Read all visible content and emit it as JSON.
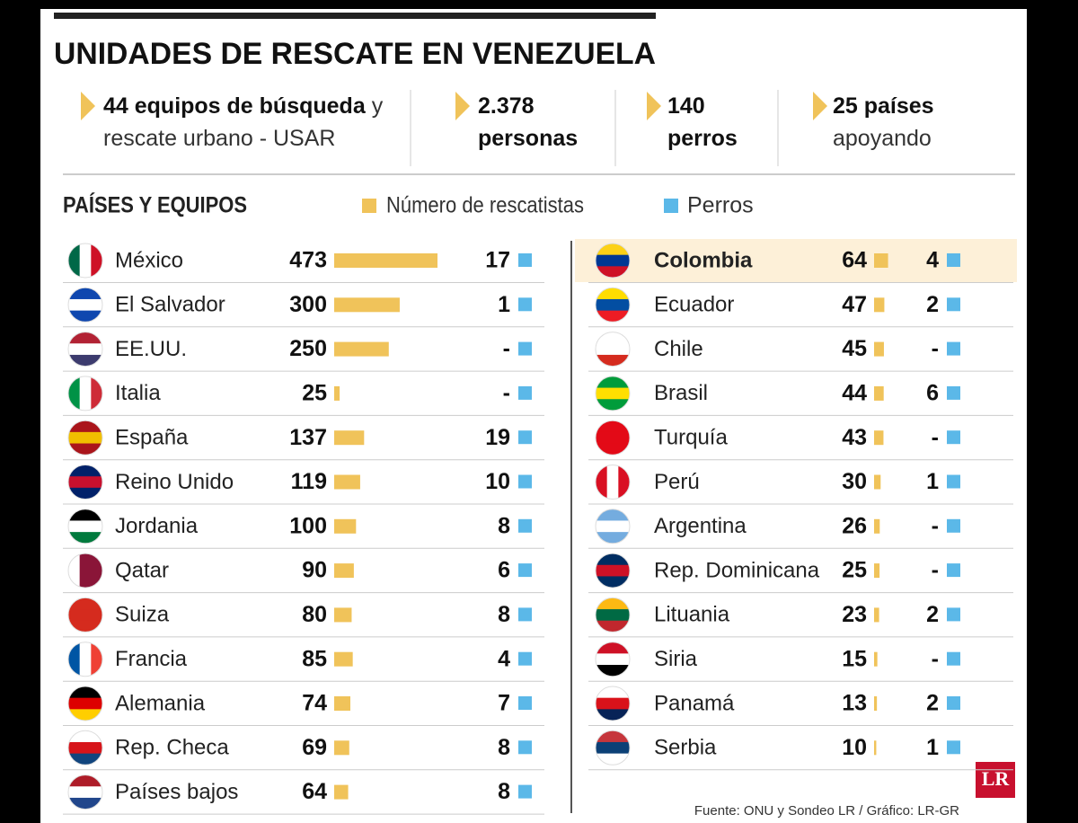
{
  "header": {
    "title": "UNIDADES DE RESCATE EN VENEZUELA",
    "stats": [
      {
        "bold": "44 equipos de búsqueda",
        "text": "y rescate urbano - USAR"
      },
      {
        "bold": "2.378 personas"
      },
      {
        "bold": "140 perros"
      },
      {
        "bold": "25 países",
        "text": "apoyando"
      }
    ]
  },
  "chart_data": {
    "type": "bar",
    "title": "PAÍSES Y EQUIPOS",
    "categories": [
      "México",
      "El Salvador",
      "EE.UU.",
      "Italia",
      "España",
      "Reino Unido",
      "Jordania",
      "Qatar",
      "Suiza",
      "Francia",
      "Alemania",
      "Rep. Checa",
      "Países bajos",
      "Colombia",
      "Ecuador",
      "Chile",
      "Brasil",
      "Turquía",
      "Perú",
      "Argentina",
      "Rep. Dominicana",
      "Lituania",
      "Siria",
      "Panamá",
      "Serbia"
    ],
    "series": [
      {
        "name": "Número de rescatistas",
        "color": "#f0c35a",
        "values": [
          473,
          300,
          250,
          25,
          137,
          119,
          100,
          90,
          80,
          85,
          74,
          69,
          64,
          64,
          47,
          45,
          44,
          43,
          30,
          26,
          25,
          23,
          15,
          13,
          10
        ]
      },
      {
        "name": "Perros",
        "color": "#5bb8e8",
        "values": [
          17,
          1,
          null,
          null,
          19,
          10,
          8,
          6,
          8,
          4,
          7,
          8,
          8,
          4,
          2,
          null,
          6,
          null,
          1,
          null,
          null,
          2,
          null,
          2,
          1
        ],
        "value_labels": [
          "17",
          "1",
          "-",
          "-",
          "19",
          "10",
          "8",
          "6",
          "8",
          "4",
          "7",
          "8",
          "8",
          "4",
          "2",
          "-",
          "6",
          "-",
          "1",
          "-",
          "-",
          "2",
          "-",
          "2",
          "1"
        ]
      }
    ],
    "highlight": 13
  },
  "footer": {
    "source": "Fuente: ONU y Sondeo LR / Gráfico: LR-GR",
    "logo": "LR"
  }
}
